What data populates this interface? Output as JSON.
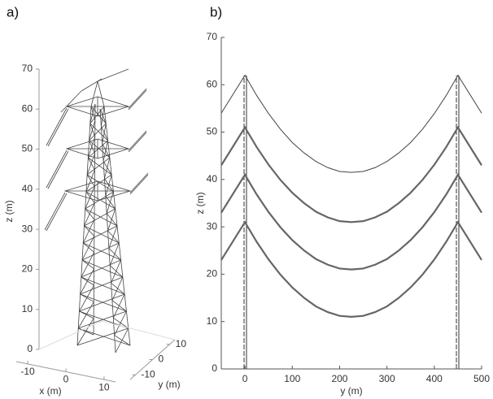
{
  "chart_data": [
    {
      "type": "wireframe3d",
      "panel_label": "a)",
      "xlabel": "x (m)",
      "ylabel": "y (m)",
      "zlabel": "z (m)",
      "xlim": [
        -13,
        13
      ],
      "ylim": [
        -13,
        13
      ],
      "zlim": [
        0,
        70
      ],
      "xticks": [
        -10,
        0,
        10
      ],
      "yticks": [
        -10,
        0,
        10
      ],
      "zticks": [
        0,
        10,
        20,
        30,
        40,
        50,
        60,
        70
      ]
    },
    {
      "type": "line",
      "panel_label": "b)",
      "xlabel": "y (m)",
      "ylabel": "z (m)",
      "xlim": [
        -50,
        500
      ],
      "ylim": [
        0,
        70
      ],
      "xticks": [
        0,
        100,
        200,
        300,
        400,
        500
      ],
      "yticks": [
        0,
        10,
        20,
        30,
        40,
        50,
        60,
        70
      ],
      "x": [
        -50,
        0,
        25,
        50,
        75,
        100,
        125,
        150,
        175,
        200,
        225,
        250,
        275,
        300,
        325,
        350,
        375,
        400,
        425,
        450,
        500
      ],
      "series": [
        {
          "color": "#444444",
          "values": [
            54,
            62,
            57.7,
            53.9,
            50.6,
            47.8,
            45.6,
            43.8,
            42.5,
            41.7,
            41.5,
            41.7,
            42.5,
            43.8,
            45.6,
            47.8,
            50.6,
            53.9,
            57.7,
            62,
            54
          ]
        },
        {
          "color": "#666666",
          "values": [
            43,
            51,
            46.8,
            43.1,
            39.9,
            37.2,
            35.0,
            33.2,
            32.0,
            31.2,
            31.0,
            31.2,
            32.0,
            33.2,
            35.0,
            37.2,
            39.9,
            43.1,
            46.8,
            51,
            43
          ]
        },
        {
          "color": "#666666",
          "values": [
            33,
            41,
            36.8,
            33.1,
            29.9,
            27.2,
            25.0,
            23.2,
            22.0,
            21.2,
            21.0,
            21.2,
            22.0,
            23.2,
            25.0,
            27.2,
            29.9,
            33.1,
            36.8,
            41,
            33
          ]
        },
        {
          "color": "#666666",
          "values": [
            23,
            31,
            26.8,
            23.1,
            19.9,
            17.2,
            15.0,
            13.2,
            12.0,
            11.2,
            11.0,
            11.2,
            12.0,
            13.2,
            15.0,
            17.2,
            19.9,
            23.1,
            26.8,
            31,
            23
          ]
        }
      ]
    }
  ]
}
